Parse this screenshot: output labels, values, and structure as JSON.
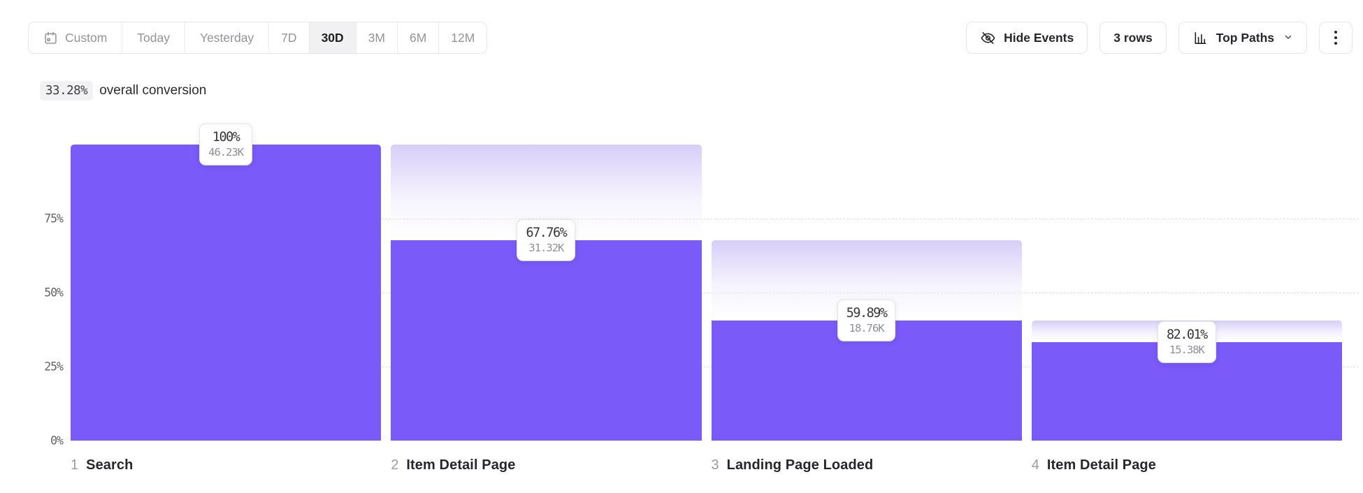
{
  "toolbar": {
    "date_ranges": [
      {
        "label": "Custom",
        "active": false,
        "has_icon": true
      },
      {
        "label": "Today",
        "active": false
      },
      {
        "label": "Yesterday",
        "active": false
      },
      {
        "label": "7D",
        "active": false
      },
      {
        "label": "30D",
        "active": true
      },
      {
        "label": "3M",
        "active": false
      },
      {
        "label": "6M",
        "active": false
      },
      {
        "label": "12M",
        "active": false
      }
    ],
    "hide_events_label": "Hide Events",
    "rows_label": "3 rows",
    "top_paths_label": "Top Paths"
  },
  "summary": {
    "value": "33.28%",
    "text": "overall conversion"
  },
  "chart_data": {
    "type": "bar",
    "subtype": "funnel",
    "title": "",
    "overall_conversion_label": "33.28%",
    "legend": "none",
    "grid": "dashed horizontal",
    "y_axis": {
      "unit": "%",
      "range": [
        0,
        100
      ],
      "ticks": [
        {
          "label": "75%",
          "value": 75
        },
        {
          "label": "50%",
          "value": 50
        },
        {
          "label": "25%",
          "value": 25
        },
        {
          "label": "0%",
          "value": 0
        }
      ]
    },
    "steps": [
      {
        "index": "1",
        "label": "Search",
        "conversion_pct": 100,
        "conversion_label": "100%",
        "count_label": "46.23K"
      },
      {
        "index": "2",
        "label": "Item Detail Page",
        "conversion_pct": 67.76,
        "conversion_label": "67.76%",
        "count_label": "31.32K"
      },
      {
        "index": "3",
        "label": "Landing Page Loaded",
        "conversion_pct": 59.89,
        "conversion_label": "59.89%",
        "count_label": "18.76K"
      },
      {
        "index": "4",
        "label": "Item Detail Page",
        "conversion_pct": 82.01,
        "conversion_label": "82.01%",
        "count_label": "15.38K"
      }
    ],
    "colors": {
      "bar": "#7A5AF8",
      "fade_top": "#D7CEF8",
      "gridline": "#DEDEE3"
    }
  }
}
